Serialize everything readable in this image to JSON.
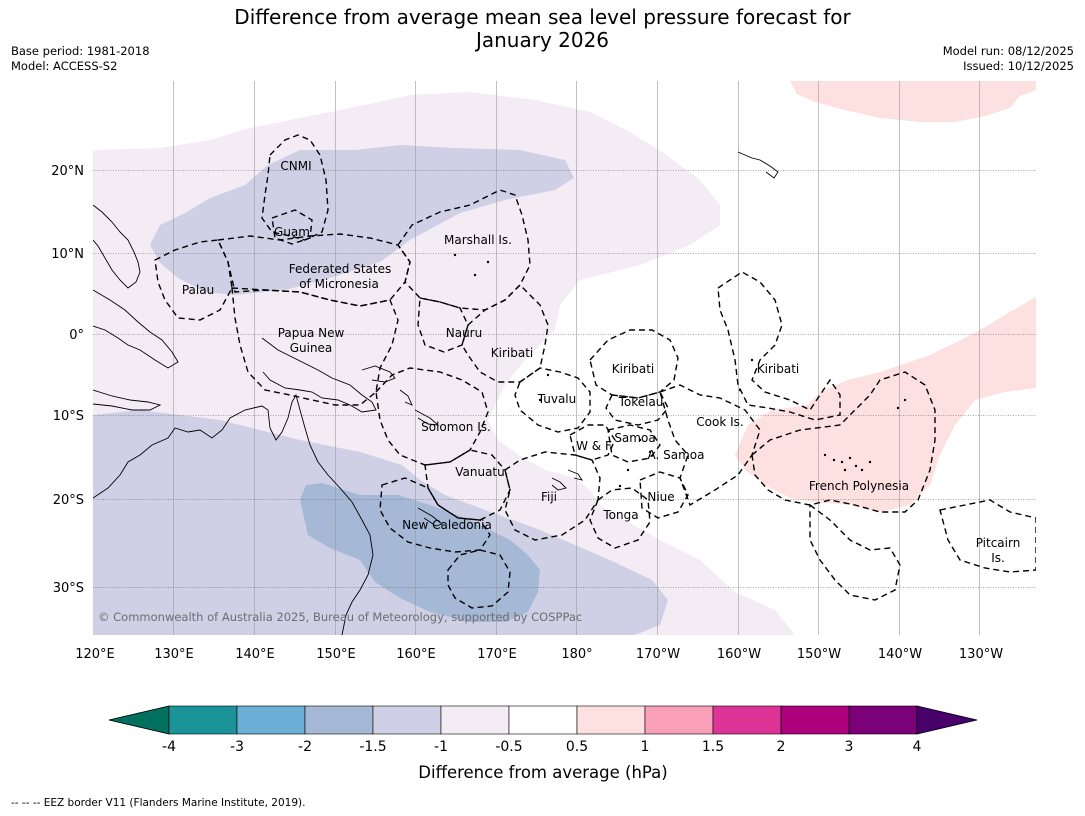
{
  "title_line1": "Difference from average mean sea level pressure forecast for",
  "title_line2": "January 2026",
  "base_period": "Base period: 1981-2018",
  "model": "Model: ACCESS-S2",
  "model_run": "Model run: 08/12/2025",
  "issued": "Issued: 10/12/2025",
  "lon_labels": [
    "120°E",
    "130°E",
    "140°E",
    "150°E",
    "160°E",
    "170°E",
    "180°",
    "170°W",
    "160°W",
    "150°W",
    "140°W",
    "130°W"
  ],
  "lat_labels": [
    "20°N",
    "10°N",
    "0°",
    "10°S",
    "20°S",
    "30°S"
  ],
  "places": {
    "cnmi": "CNMI",
    "guam": "Guam",
    "marshall": "Marshall Is.",
    "palau": "Palau",
    "fsm_1": "Federated States",
    "fsm_2": "of Micronesia",
    "png_1": "Papua New",
    "png_2": "Guinea",
    "nauru": "Nauru",
    "kiribati_w": "Kiribati",
    "kiribati_c": "Kiribati",
    "kiribati_e": "Kiribati",
    "tuvalu": "Tuvalu",
    "tokelau": "Tokelau",
    "solomon": "Solomon Is.",
    "cook": "Cook Is.",
    "wf": "W & F",
    "samoa": "Samoa",
    "asamoa": "A. Samoa",
    "vanuatu": "Vanuatu",
    "fiji": "Fiji",
    "niue": "Niue",
    "tonga": "Tonga",
    "french_polynesia": "French Polynesia",
    "new_caledonia": "New Caledonia",
    "pitcairn_1": "Pitcairn",
    "pitcairn_2": "Is."
  },
  "copyright": "© Commonwealth of Australia 2025, Bureau of Meteorology, supported by COSPPac",
  "colorbar": {
    "ticks": [
      "-4",
      "-3",
      "-2",
      "-1.5",
      "-1",
      "-0.5",
      "0.5",
      "1",
      "1.5",
      "2",
      "3",
      "4"
    ],
    "colors": [
      "#1a9399",
      "#6baed6",
      "#a5b8d6",
      "#cfd0e6",
      "#f4ecf5",
      "#ffffff",
      "#fde0e0",
      "#f9a0b8",
      "#dd3497",
      "#ae017e",
      "#7a0177"
    ],
    "under_color": "#02705f",
    "over_color": "#49006a",
    "label": "Difference from average (hPa)"
  },
  "footer": "--  --  -- EEZ border V11 (Flanders Marine Institute, 2019)."
}
